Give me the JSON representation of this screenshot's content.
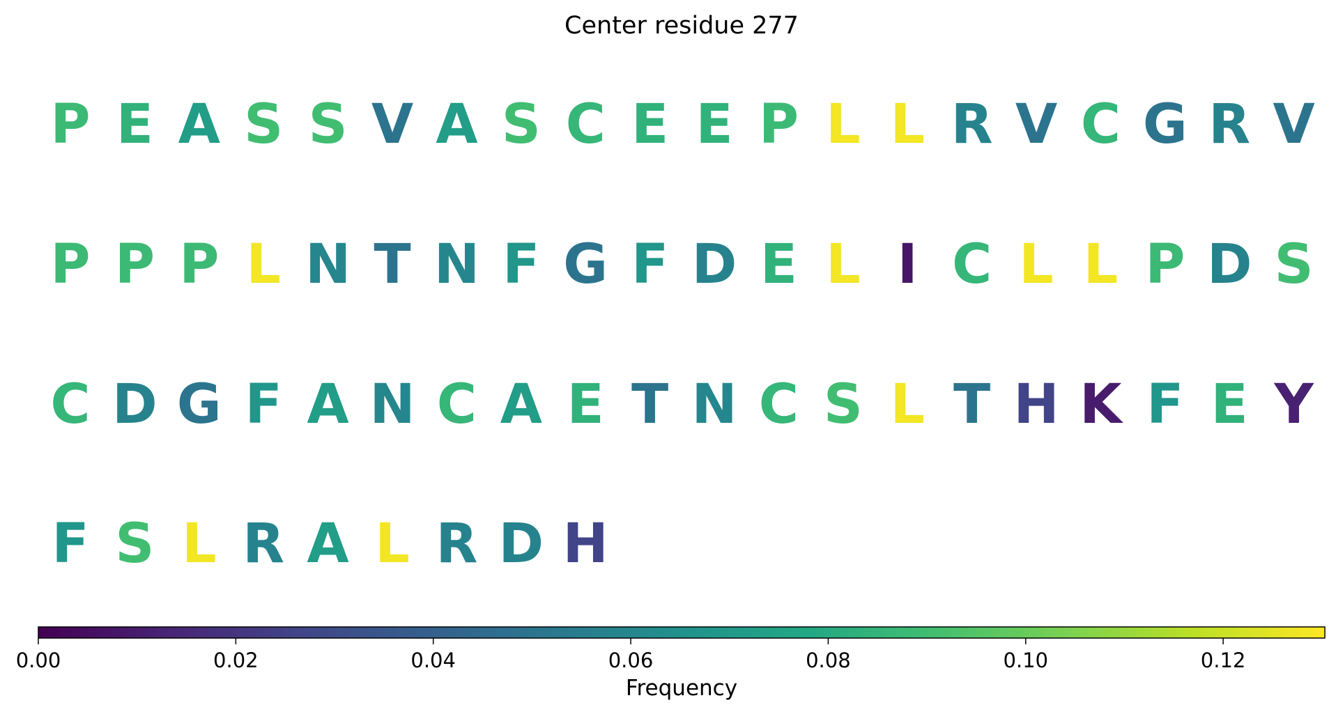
{
  "chart_data": {
    "type": "heatmap",
    "title": "Center residue 277",
    "letters_per_row": 20,
    "residues": [
      {
        "letter": "P",
        "value": 0.088
      },
      {
        "letter": "E",
        "value": 0.084
      },
      {
        "letter": "A",
        "value": 0.072
      },
      {
        "letter": "S",
        "value": 0.09
      },
      {
        "letter": "S",
        "value": 0.09
      },
      {
        "letter": "V",
        "value": 0.05
      },
      {
        "letter": "A",
        "value": 0.072
      },
      {
        "letter": "S",
        "value": 0.09
      },
      {
        "letter": "C",
        "value": 0.086
      },
      {
        "letter": "E",
        "value": 0.084
      },
      {
        "letter": "E",
        "value": 0.084
      },
      {
        "letter": "P",
        "value": 0.088
      },
      {
        "letter": "L",
        "value": 0.128
      },
      {
        "letter": "L",
        "value": 0.128
      },
      {
        "letter": "R",
        "value": 0.058
      },
      {
        "letter": "V",
        "value": 0.05
      },
      {
        "letter": "C",
        "value": 0.086
      },
      {
        "letter": "G",
        "value": 0.05
      },
      {
        "letter": "R",
        "value": 0.058
      },
      {
        "letter": "V",
        "value": 0.05
      },
      {
        "letter": "P",
        "value": 0.088
      },
      {
        "letter": "P",
        "value": 0.088
      },
      {
        "letter": "P",
        "value": 0.088
      },
      {
        "letter": "L",
        "value": 0.128
      },
      {
        "letter": "N",
        "value": 0.06
      },
      {
        "letter": "T",
        "value": 0.05
      },
      {
        "letter": "N",
        "value": 0.06
      },
      {
        "letter": "F",
        "value": 0.068
      },
      {
        "letter": "G",
        "value": 0.05
      },
      {
        "letter": "F",
        "value": 0.068
      },
      {
        "letter": "D",
        "value": 0.058
      },
      {
        "letter": "E",
        "value": 0.084
      },
      {
        "letter": "L",
        "value": 0.128
      },
      {
        "letter": "I",
        "value": 0.008
      },
      {
        "letter": "C",
        "value": 0.086
      },
      {
        "letter": "L",
        "value": 0.128
      },
      {
        "letter": "L",
        "value": 0.128
      },
      {
        "letter": "P",
        "value": 0.088
      },
      {
        "letter": "D",
        "value": 0.058
      },
      {
        "letter": "S",
        "value": 0.09
      },
      {
        "letter": "C",
        "value": 0.086
      },
      {
        "letter": "D",
        "value": 0.058
      },
      {
        "letter": "G",
        "value": 0.05
      },
      {
        "letter": "F",
        "value": 0.068
      },
      {
        "letter": "A",
        "value": 0.072
      },
      {
        "letter": "N",
        "value": 0.06
      },
      {
        "letter": "C",
        "value": 0.086
      },
      {
        "letter": "A",
        "value": 0.072
      },
      {
        "letter": "E",
        "value": 0.084
      },
      {
        "letter": "T",
        "value": 0.05
      },
      {
        "letter": "N",
        "value": 0.06
      },
      {
        "letter": "C",
        "value": 0.086
      },
      {
        "letter": "S",
        "value": 0.09
      },
      {
        "letter": "L",
        "value": 0.128
      },
      {
        "letter": "T",
        "value": 0.05
      },
      {
        "letter": "H",
        "value": 0.026
      },
      {
        "letter": "K",
        "value": 0.01
      },
      {
        "letter": "F",
        "value": 0.068
      },
      {
        "letter": "E",
        "value": 0.084
      },
      {
        "letter": "Y",
        "value": 0.012
      },
      {
        "letter": "F",
        "value": 0.068
      },
      {
        "letter": "S",
        "value": 0.09
      },
      {
        "letter": "L",
        "value": 0.128
      },
      {
        "letter": "R",
        "value": 0.058
      },
      {
        "letter": "A",
        "value": 0.072
      },
      {
        "letter": "L",
        "value": 0.128
      },
      {
        "letter": "R",
        "value": 0.058
      },
      {
        "letter": "D",
        "value": 0.058
      },
      {
        "letter": "H",
        "value": 0.026
      }
    ],
    "colorbar": {
      "label": "Frequency",
      "colormap": "viridis",
      "vmin": 0.0,
      "vmax": 0.1303,
      "ticks": [
        0.0,
        0.02,
        0.04,
        0.06,
        0.08,
        0.1,
        0.12
      ],
      "tick_labels": [
        "0.00",
        "0.02",
        "0.04",
        "0.06",
        "0.08",
        "0.10",
        "0.12"
      ]
    }
  }
}
